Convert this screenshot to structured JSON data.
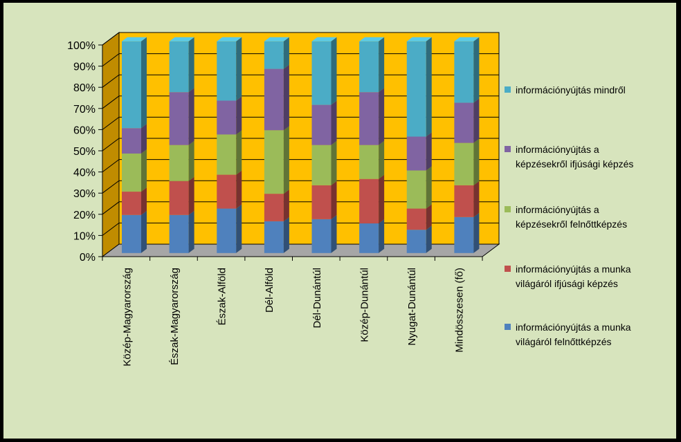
{
  "chart_data": {
    "type": "bar",
    "stacked": "percent",
    "title": "",
    "xlabel": "",
    "ylabel": "",
    "ylim": [
      0,
      100
    ],
    "y_ticks": [
      "0%",
      "10%",
      "20%",
      "30%",
      "40%",
      "50%",
      "60%",
      "70%",
      "80%",
      "90%",
      "100%"
    ],
    "categories": [
      "Közép-Magyarország",
      "Észak-Magyarország",
      "Észak-Alföld",
      "Dél-Alföld",
      "Dél-Dunántúl",
      "Közép-Dunántúl",
      "Nyugat-Dunántúl",
      "Mindösszesen (fő)"
    ],
    "series": [
      {
        "name": "információnyújtás a munka világáról felnőttképzés",
        "color": "#4f81bd",
        "values": [
          18,
          18,
          21,
          15,
          16,
          14,
          11,
          17
        ]
      },
      {
        "name": "információnyújtás a munka világáról ifjúsági képzés",
        "color": "#c0504d",
        "values": [
          11,
          16,
          16,
          13,
          16,
          21,
          10,
          15
        ]
      },
      {
        "name": "információnyújtás a képzésekről felnőttképzés",
        "color": "#9bbb59",
        "values": [
          18,
          17,
          19,
          30,
          19,
          16,
          18,
          20
        ]
      },
      {
        "name": "információnyújtás a képzésekről ifjúsági képzés",
        "color": "#8064a2",
        "values": [
          12,
          25,
          16,
          29,
          19,
          25,
          16,
          19
        ]
      },
      {
        "name": "információnyújtás mindről",
        "color": "#4bacc6",
        "values": [
          41,
          24,
          28,
          13,
          30,
          24,
          45,
          29
        ]
      }
    ],
    "legend_position": "right",
    "legend_order_top_to_bottom": [
      4,
      3,
      2,
      1,
      0
    ],
    "legend_lines": [
      [
        "információnyújtás mindről"
      ],
      [
        "információnyújtás a",
        "képzésekről ifjúsági képzés"
      ],
      [
        "információnyújtás a",
        "képzésekről felnőttképzés"
      ],
      [
        "információnyújtás a munka",
        "világáról ifjúsági képzés"
      ],
      [
        "információnyújtás a munka",
        "világáról felnőttképzés"
      ]
    ],
    "colors": {
      "background": "#d7e4bd",
      "back_wall": "#ffc000",
      "side_wall": "#c08c00",
      "floor": "#a6a6a6",
      "border": "#000000"
    }
  }
}
